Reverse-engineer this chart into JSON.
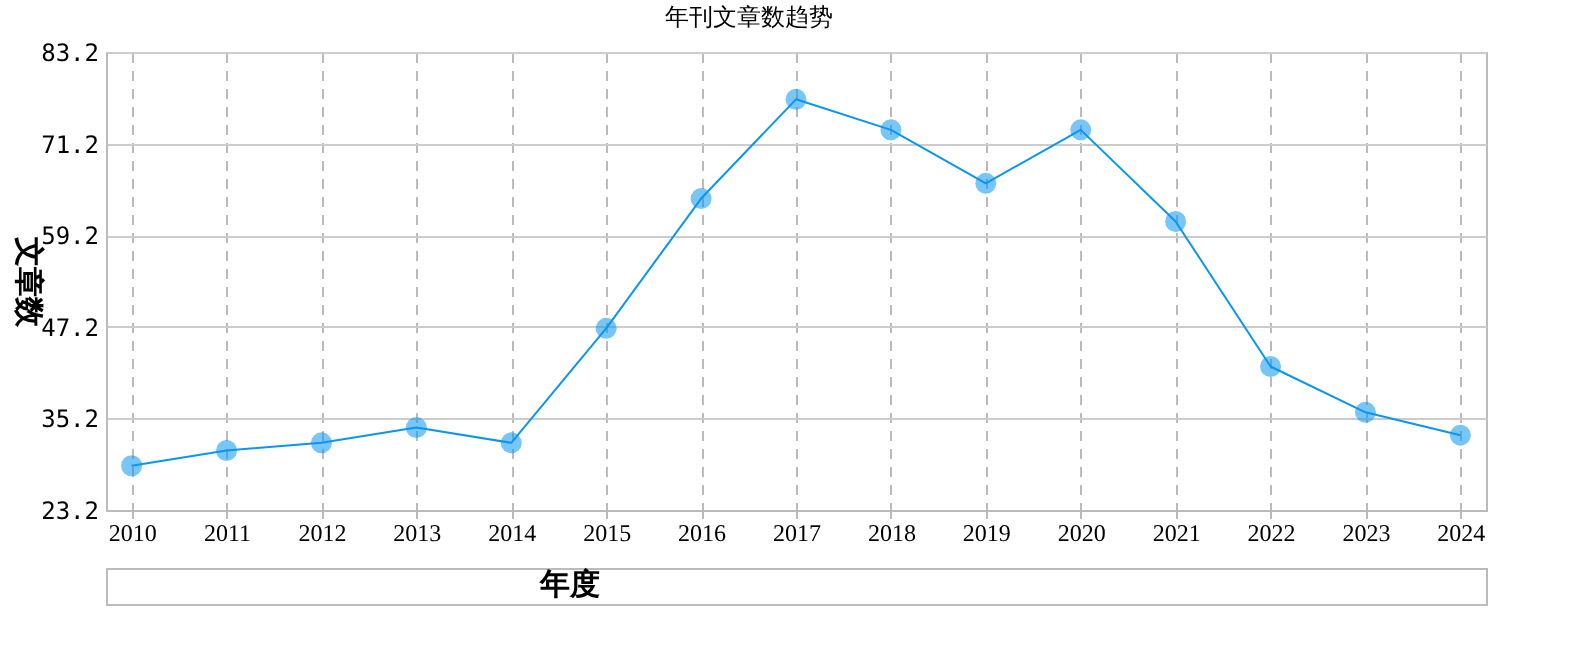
{
  "chart_data": {
    "type": "line",
    "title": "年刊文章数趋势",
    "xlabel": "年度",
    "ylabel": "文章数",
    "categories": [
      "2010",
      "2011",
      "2012",
      "2013",
      "2014",
      "2015",
      "2016",
      "2017",
      "2018",
      "2019",
      "2020",
      "2021",
      "2022",
      "2023",
      "2024"
    ],
    "series": [
      {
        "color": "#0a96f0",
        "values": [
          29,
          31,
          32,
          34,
          32,
          47,
          64,
          77,
          73,
          66,
          73,
          61,
          42,
          36,
          33
        ]
      }
    ],
    "ylim": [
      23.2,
      83.2
    ],
    "yticks": [
      23.2,
      35.2,
      47.2,
      59.2,
      71.2,
      83.2
    ],
    "grid": true,
    "marker": "circle",
    "line_style": "solid"
  }
}
